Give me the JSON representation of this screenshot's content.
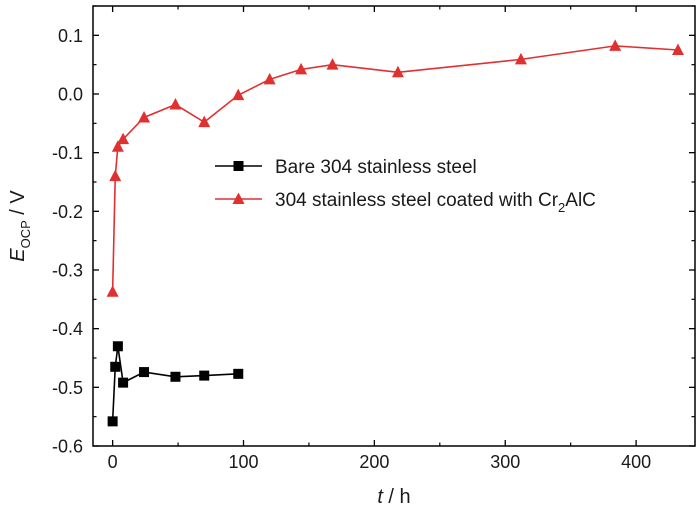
{
  "chart_data": {
    "type": "line",
    "title": "",
    "xlabel": {
      "symbol": "t",
      "unit": " / h"
    },
    "ylabel": {
      "symbol": "E",
      "subscript": "OCP",
      "unit": " / V"
    },
    "xlim": [
      -15,
      445
    ],
    "ylim": [
      -0.6,
      0.15
    ],
    "xticks": [
      0,
      100,
      200,
      300,
      400
    ],
    "yticks": [
      0.1,
      0.0,
      -0.1,
      -0.2,
      -0.3,
      -0.4,
      -0.5,
      -0.6
    ],
    "ytick_labels": [
      "0.1",
      "0.0",
      "-0.1",
      "-0.2",
      "-0.3",
      "-0.4",
      "-0.5",
      "-0.6"
    ],
    "grid": false,
    "legend_position": "center",
    "series": [
      {
        "name": "Bare 304 stainless steel",
        "marker": "square",
        "color": "#000000",
        "x": [
          0,
          2,
          4,
          8,
          24,
          48,
          70,
          96
        ],
        "y": [
          -0.558,
          -0.465,
          -0.43,
          -0.492,
          -0.474,
          -0.482,
          -0.48,
          -0.477
        ]
      },
      {
        "name": "304 stainless steel coated with Cr",
        "name_sub": "2",
        "name_suffix": "AlC",
        "marker": "triangle",
        "color": "#e03030",
        "x": [
          0,
          2,
          4,
          8,
          24,
          48,
          70,
          96,
          120,
          144,
          168,
          218,
          312,
          384,
          432
        ],
        "y": [
          -0.337,
          -0.14,
          -0.09,
          -0.077,
          -0.04,
          -0.018,
          -0.048,
          -0.002,
          0.025,
          0.042,
          0.05,
          0.037,
          0.059,
          0.082,
          0.075
        ]
      }
    ]
  }
}
